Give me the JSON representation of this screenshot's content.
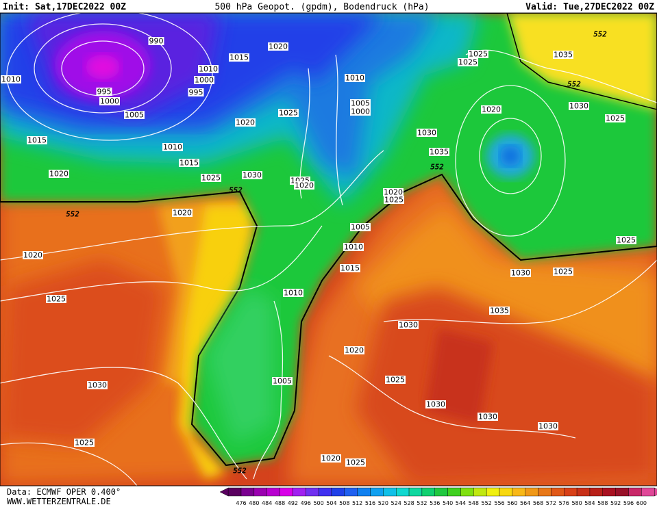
{
  "header": {
    "init": "Init: Sat,17DEC2022 00Z",
    "title": "500 hPa Geopot. (gpdm), Bodendruck (hPa)",
    "valid": "Valid: Tue,27DEC2022 00Z"
  },
  "isobar_labels": [
    "990",
    "1010",
    "1015",
    "1020",
    "1010",
    "1000",
    "995",
    "995",
    "1000",
    "1005",
    "1010",
    "1005",
    "1000",
    "1025",
    "1020",
    "1015",
    "1010",
    "1015",
    "1020",
    "1025",
    "1030",
    "1025",
    "1020",
    "1020",
    "1020",
    "1025",
    "1035",
    "1030",
    "1025",
    "1025",
    "1020",
    "1035",
    "1030",
    "1025",
    "1025",
    "1025",
    "1030",
    "1035",
    "1005",
    "1010",
    "1015",
    "1010",
    "1020",
    "1025",
    "1030",
    "1020",
    "1030",
    "1005",
    "1025",
    "1030",
    "1030",
    "1030",
    "1025",
    "1020",
    "1025"
  ],
  "geopotential_labels": [
    "552",
    "552",
    "552",
    "552",
    "552",
    "552"
  ],
  "legend": {
    "scale": [
      "476",
      "480",
      "484",
      "488",
      "492",
      "496",
      "500",
      "504",
      "508",
      "512",
      "516",
      "520",
      "524",
      "528",
      "532",
      "536",
      "540",
      "544",
      "548",
      "552",
      "556",
      "560",
      "564",
      "568",
      "572",
      "576",
      "580",
      "584",
      "588",
      "592",
      "596",
      "600"
    ]
  },
  "footer": {
    "source": "Data: ECMWF OPER 0.400°",
    "website": "WWW.WETTERZENTRALE.DE"
  }
}
